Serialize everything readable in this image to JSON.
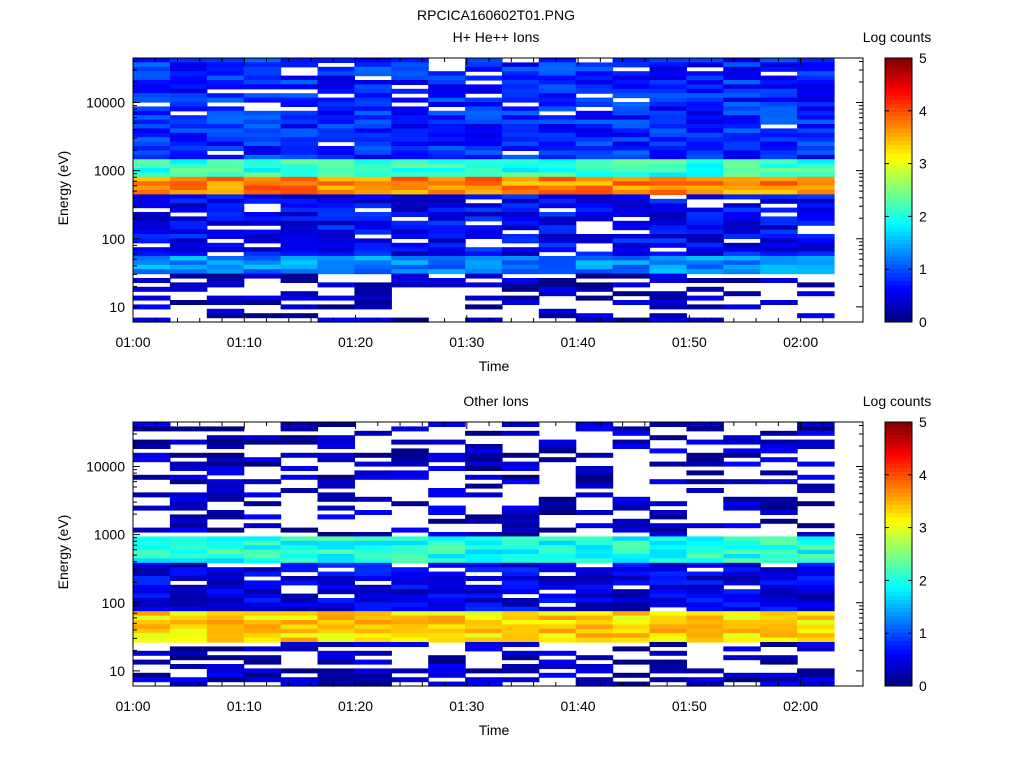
{
  "figure_title": "RPCICA160602T01.PNG",
  "chart_data": [
    {
      "type": "heatmap",
      "title": "H+ He++ Ions",
      "xlabel": "Time",
      "ylabel": "Energy (eV)",
      "x_tick_labels": [
        "01:00",
        "01:10",
        "01:20",
        "01:30",
        "01:40",
        "01:50",
        "02:00"
      ],
      "x_range": [
        "01:00",
        "02:03"
      ],
      "y_scale": "log",
      "y_tick_labels": [
        "10",
        "100",
        "1000",
        "10000"
      ],
      "y_range": [
        6,
        45000
      ],
      "colorbar": {
        "label": "Log counts",
        "range": [
          0,
          5
        ],
        "tick_labels": [
          "0",
          "1",
          "2",
          "3",
          "4",
          "5"
        ]
      },
      "energy_bands": [
        {
          "energy_range_eV": [
            6,
            30
          ],
          "log_counts": 0.3,
          "coverage": "sparse"
        },
        {
          "energy_range_eV": [
            30,
            55
          ],
          "log_counts": 1.3
        },
        {
          "energy_range_eV": [
            55,
            450
          ],
          "log_counts": 0.6
        },
        {
          "energy_range_eV": [
            450,
            800
          ],
          "log_counts": 3.7
        },
        {
          "energy_range_eV": [
            800,
            1500
          ],
          "log_counts": 2.1
        },
        {
          "energy_range_eV": [
            1500,
            45000
          ],
          "log_counts": 0.8
        }
      ]
    },
    {
      "type": "heatmap",
      "title": "Other Ions",
      "xlabel": "Time",
      "ylabel": "Energy (eV)",
      "x_tick_labels": [
        "01:00",
        "01:10",
        "01:20",
        "01:30",
        "01:40",
        "01:50",
        "02:00"
      ],
      "x_range": [
        "01:00",
        "02:03"
      ],
      "y_scale": "log",
      "y_tick_labels": [
        "10",
        "100",
        "1000",
        "10000"
      ],
      "y_range": [
        6,
        45000
      ],
      "colorbar": {
        "label": "Log counts",
        "range": [
          0,
          5
        ],
        "tick_labels": [
          "0",
          "1",
          "2",
          "3",
          "4",
          "5"
        ]
      },
      "energy_bands": [
        {
          "energy_range_eV": [
            6,
            25
          ],
          "log_counts": 0.3,
          "coverage": "sparse"
        },
        {
          "energy_range_eV": [
            25,
            80
          ],
          "log_counts": 3.3
        },
        {
          "energy_range_eV": [
            80,
            400
          ],
          "log_counts": 0.5
        },
        {
          "energy_range_eV": [
            400,
            1000
          ],
          "log_counts": 2.0
        },
        {
          "energy_range_eV": [
            1000,
            45000
          ],
          "log_counts": 0.3,
          "coverage": "sparse"
        }
      ]
    }
  ]
}
